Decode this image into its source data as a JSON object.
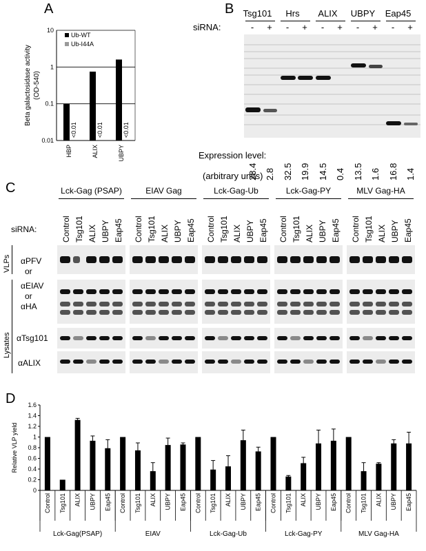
{
  "panels": {
    "A": "A",
    "B": "B",
    "C": "C",
    "D": "D"
  },
  "panelA": {
    "chart_data": {
      "type": "bar",
      "scale": "log",
      "categories": [
        "HBP",
        "ALIX",
        "UBPY"
      ],
      "series": [
        {
          "name": "Ub-WT",
          "values": [
            0.1,
            0.75,
            1.6
          ]
        },
        {
          "name": "Ub-I44A",
          "values": [
            null,
            null,
            null
          ],
          "labels": [
            "<0.01",
            "<0.01",
            "<0.01"
          ]
        }
      ],
      "ylabel": "Beta galactosidase activity (OD-540)",
      "ylabel_line1": "Beta galactosidase activity",
      "ylabel_line2": "(OD-540)",
      "yticks": [
        "10",
        "1",
        "0.1",
        "0.01"
      ],
      "ylim": [
        0.01,
        10
      ],
      "legend": "top-left",
      "colors": {
        "Ub-WT": "#000000",
        "Ub-I44A": "#9a9a9a"
      }
    }
  },
  "panelB": {
    "proteins": [
      "Tsg101",
      "Hrs",
      "ALIX",
      "UBPY",
      "Eap45"
    ],
    "sirna_label": "siRNA:",
    "lane_signs": [
      "-",
      "+",
      "-",
      "+",
      "-",
      "+",
      "-",
      "+",
      "-",
      "+"
    ],
    "expression_label": "Expression level:",
    "units_label": "(arbitrary units)",
    "expression_values": [
      "28.4",
      "2.8",
      "32.5",
      "19.9",
      "14.5",
      "0.4",
      "13.5",
      "1.6",
      "16.8",
      "1.4"
    ]
  },
  "panelC": {
    "constructs": [
      "Lck-Gag (PSAP)",
      "EIAV Gag",
      "Lck-Gag-Ub",
      "Lck-Gag-PY",
      "MLV Gag-HA"
    ],
    "sirna_label": "siRNA:",
    "lanes": [
      "Control",
      "Tsg101",
      "ALIX",
      "UBPY",
      "Eap45"
    ],
    "side_labels": {
      "vlps": "VLPs",
      "lysates": "Lysates"
    },
    "row_labels": {
      "pfv": "αPFV",
      "or1": "or",
      "eiav": "αEIAV",
      "or2": "or",
      "ha": "αHA",
      "tsg": "αTsg101",
      "alix": "αALIX"
    }
  },
  "panelD": {
    "chart_data": {
      "type": "bar",
      "groups": [
        "Lck-Gag(PSAP)",
        "EIAV",
        "Lck-Gag-Ub",
        "Lck-Gag-PY",
        "MLV Gag-HA"
      ],
      "categories": [
        "Control",
        "Tsg101",
        "ALIX",
        "UBPY",
        "Eap45"
      ],
      "series": [
        {
          "name": "Lck-Gag(PSAP)",
          "values": [
            1.0,
            0.2,
            1.32,
            0.93,
            0.79
          ],
          "errors": [
            0,
            0,
            0.03,
            0.09,
            0.16
          ]
        },
        {
          "name": "EIAV",
          "values": [
            1.0,
            0.75,
            0.36,
            0.85,
            0.86
          ],
          "errors": [
            0,
            0.14,
            0.16,
            0.13,
            0.03
          ]
        },
        {
          "name": "Lck-Gag-Ub",
          "values": [
            1.0,
            0.39,
            0.45,
            0.94,
            0.73
          ],
          "errors": [
            0,
            0.17,
            0.2,
            0.19,
            0.08
          ]
        },
        {
          "name": "Lck-Gag-PY",
          "values": [
            1.0,
            0.26,
            0.51,
            0.88,
            0.93
          ],
          "errors": [
            0,
            0.02,
            0.11,
            0.25,
            0.22
          ]
        },
        {
          "name": "MLV Gag-HA",
          "values": [
            1.0,
            0.36,
            0.5,
            0.88,
            0.88
          ],
          "errors": [
            0,
            0.16,
            0.02,
            0.07,
            0.21
          ]
        }
      ],
      "ylabel": "Relative VLP yield",
      "yticks": [
        "0",
        "0.2",
        "0.4",
        "0.6",
        "0.8",
        "1",
        "1.2",
        "1.4",
        "1.6"
      ],
      "ylim": [
        0,
        1.6
      ]
    }
  }
}
